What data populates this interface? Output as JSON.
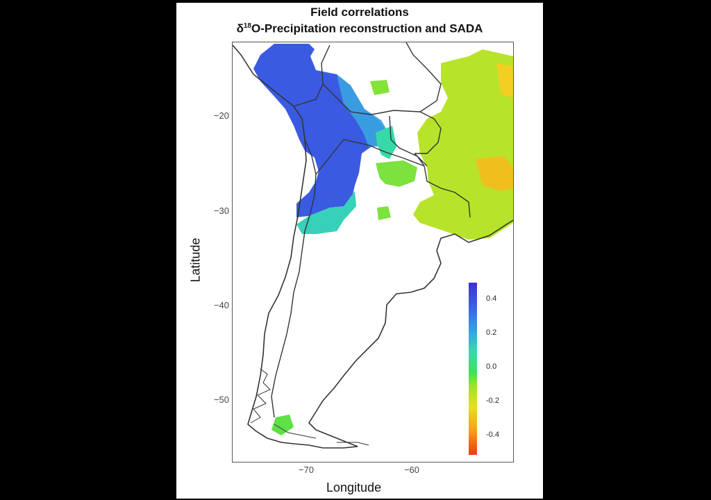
{
  "title": {
    "line1": "Field correlations",
    "delta": "δ",
    "sup": "18",
    "line2_rest": "O-Precipitation reconstruction and SADA"
  },
  "axes": {
    "ylabel": "Latitude",
    "xlabel": "Longitude",
    "yticks": [
      "−20",
      "−30",
      "−40",
      "−50"
    ],
    "xticks": [
      "−70",
      "−60"
    ]
  },
  "colorbar": {
    "labels": [
      "0.4",
      "0.2",
      "0.0",
      "-0.2",
      "-0.4"
    ],
    "range": [
      -0.5,
      0.5
    ]
  },
  "colors": {
    "positive_high": "#3a4fe0",
    "positive_mid": "#38a9dd",
    "neutral": "#3ee05a",
    "negative_mid": "#e6e01c",
    "negative_high": "#ee3a14"
  }
}
